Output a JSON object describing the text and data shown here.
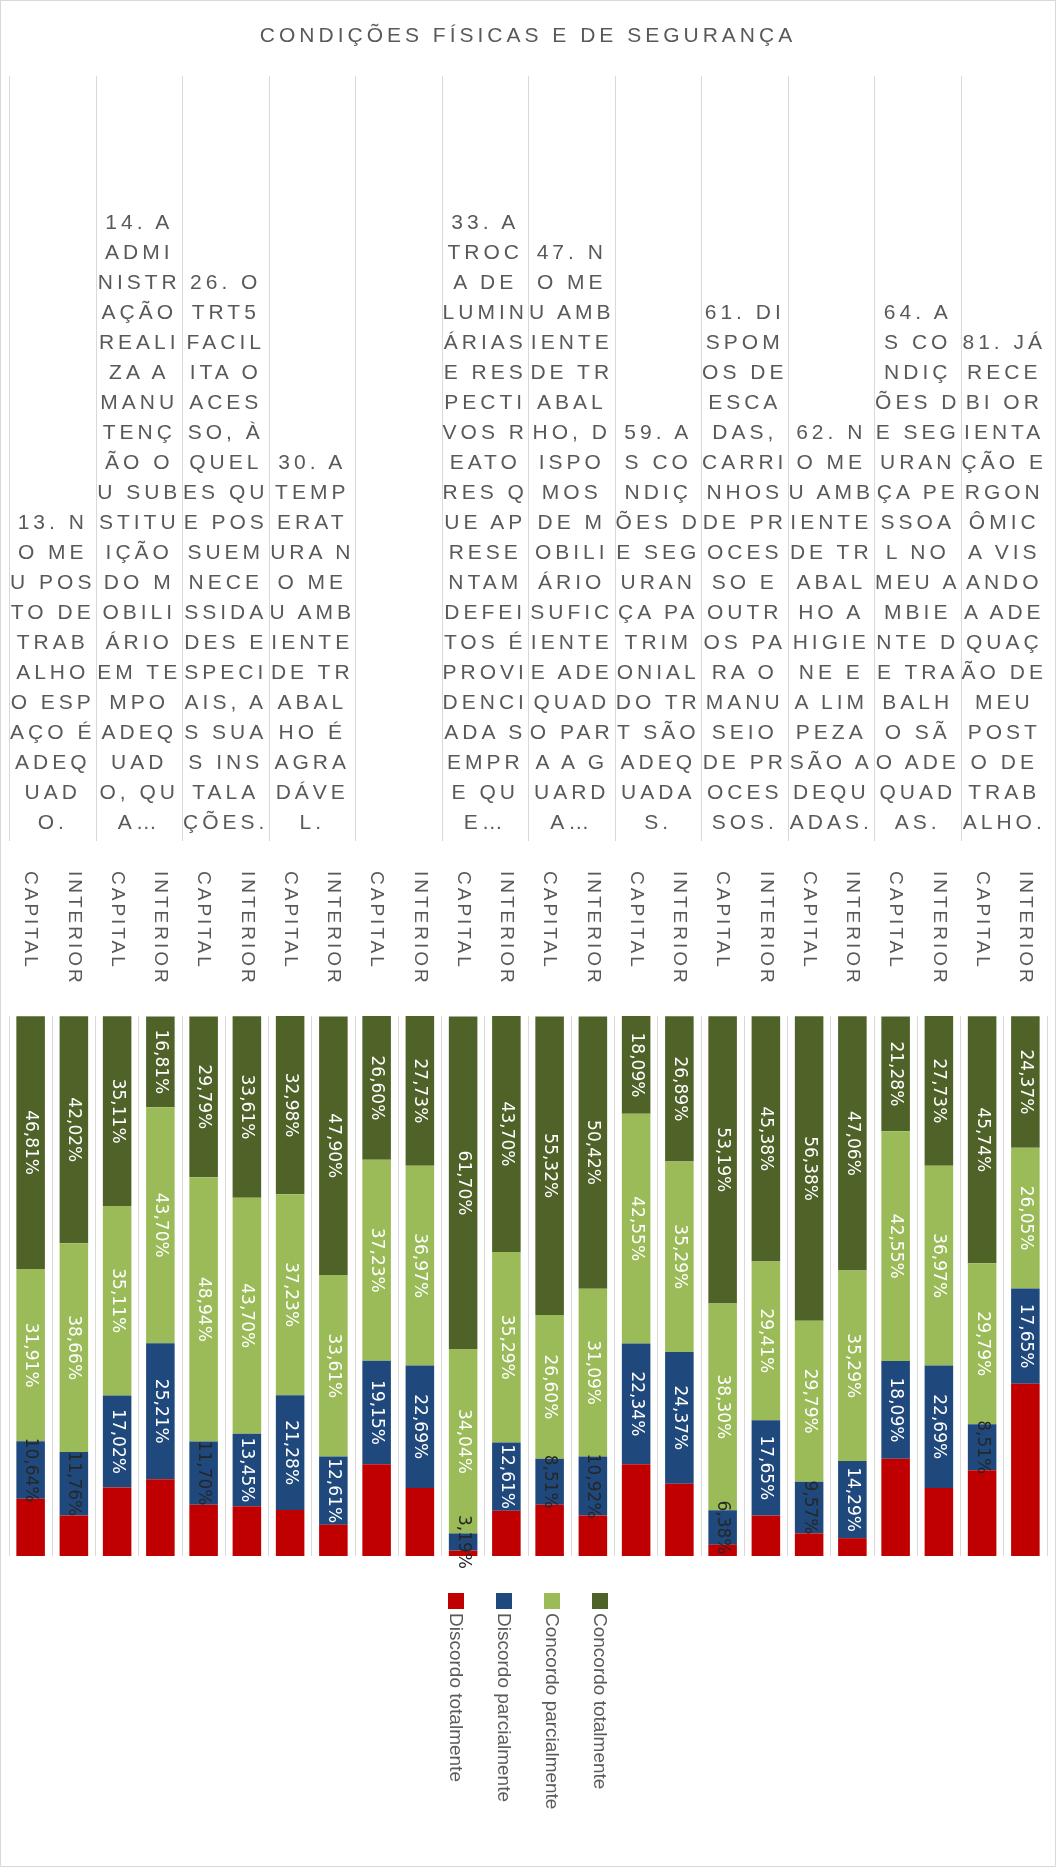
{
  "chart_data": {
    "type": "bar",
    "title": "CONDIÇÕES FÍSICAS E DE SEGURANÇA",
    "categories": [
      "CAPITAL",
      "INTERIOR",
      "CAPITAL",
      "INTERIOR",
      "CAPITAL",
      "INTERIOR",
      "CAPITAL",
      "INTERIOR",
      "CAPITAL",
      "INTERIOR",
      "CAPITAL",
      "INTERIOR",
      "CAPITAL",
      "INTERIOR",
      "CAPITAL",
      "INTERIOR",
      "CAPITAL",
      "INTERIOR",
      "CAPITAL",
      "INTERIOR",
      "CAPITAL",
      "INTERIOR",
      "CAPITAL",
      "INTERIOR"
    ],
    "annotations": [
      "13. NO MEU POSTO DE TRABALHO O ESPAÇO É ADEQUADO.",
      "14. A ADMINISTRAÇÃO REALIZA A MANUTENÇÃO OU SUBSTITUIÇÃO DO MOBILIÁRIO EM TEMPO ADEQUADO, QUA…",
      "26. O TRT5 FACILITA O ACESSO, ÀQUELES QUE POSSUEM NECESSIDADES ESPECIAIS, AS SUAS INSTALAÇÕES.",
      "30. A TEMPERATURA NO MEU AMBIENTE DE TRABALHO É AGRADÁVEL.",
      null,
      "33. A TROCA DE LUMINÁRIAS E RESPECTIVOS REATORES QUE APRESENTAM DEFEITOS É PROVIDENCIADA SEMPRE QUE…",
      "47. NO MEU AMBIENTE DE TRABALHO, DISPOMOS DE MOBILIÁRIO SUFICIENTE E ADEQUADO PARA A GUARDA…",
      "59. AS CONDIÇÕES DE SEGURANÇA PATRIMONIAL DO TRT SÃO ADEQUADAS.",
      "61. DISPOMOS DE ESCADAS, CARRINHOS DE PROCESSO E OUTROS PARA O MANUSEIO DE PROCESSOS.",
      "62. NO MEU AMBIENTE DE TRABALHO A HIGIENE E A LIMPEZA SÃO ADEQUADAS.",
      "64. AS CONDIÇÕES DE SEGURANÇA PESSOAL NO MEU AMBIENTE DE TRABALHO SÃO ADEQUADAS.",
      "81. JÁ RECEBI ORIENTAÇÃO ERGONÔMICA VISANDO A ADEQUAÇÃO DE MEU POSTO DE TRABALHO."
    ],
    "stacked": true,
    "ylim": [
      0,
      100
    ],
    "tick_labels": "x",
    "grid": "x",
    "legend": "bottom",
    "series": [
      {
        "name": "Discordo totalmente",
        "color": "#c00000",
        "values": [
          10.6,
          7.5,
          12.7,
          14.2,
          9.5,
          9.2,
          8.5,
          5.8,
          17.0,
          12.6,
          1.0,
          8.4,
          9.5,
          7.5,
          17.0,
          13.4,
          2.1,
          7.5,
          4.2,
          3.3,
          18.0,
          12.6,
          15.9,
          31.9
        ]
      },
      {
        "name": "Discordo parcialmente",
        "color": "#1f497d",
        "values": [
          10.64,
          11.76,
          17.02,
          25.21,
          11.7,
          13.45,
          21.28,
          12.61,
          19.15,
          22.69,
          3.19,
          12.61,
          8.51,
          10.92,
          22.34,
          24.37,
          6.38,
          17.65,
          9.57,
          14.29,
          18.09,
          22.69,
          8.51,
          17.65
        ],
        "value_labels": [
          "10,64%",
          "11,76%",
          "17,02%",
          "25,21%",
          "11,70%",
          "13,45%",
          "21,28%",
          "12,61%",
          "19,15%",
          "22,69%",
          "3,19%",
          "12,61%",
          "8,51%",
          "10,92%",
          "22,34%",
          "24,37%",
          "6,38%",
          "17,65%",
          "9,57%",
          "14,29%",
          "18,09%",
          "22,69%",
          "8,51%",
          "17,65%"
        ]
      },
      {
        "name": "Concordo parcialmente",
        "color": "#9bbb59",
        "values": [
          31.91,
          38.66,
          35.11,
          43.7,
          48.94,
          43.7,
          37.23,
          33.61,
          37.23,
          36.97,
          34.04,
          35.29,
          26.6,
          31.09,
          42.55,
          35.29,
          38.3,
          29.41,
          29.79,
          35.29,
          42.55,
          36.97,
          29.79,
          26.05
        ],
        "value_labels": [
          "31,91%",
          "38,66%",
          "35,11%",
          "43,70%",
          "48,94%",
          "43,70%",
          "37,23%",
          "33,61%",
          "37,23%",
          "36,97%",
          "34,04%",
          "35,29%",
          "26,60%",
          "31,09%",
          "42,55%",
          "35,29%",
          "38,30%",
          "29,41%",
          "29,79%",
          "35,29%",
          "42,55%",
          "36,97%",
          "29,79%",
          "26,05%"
        ]
      },
      {
        "name": "Concordo totalmente",
        "color": "#4f6228",
        "values": [
          46.81,
          42.02,
          35.11,
          16.81,
          29.79,
          33.61,
          32.98,
          47.9,
          26.6,
          27.73,
          61.7,
          43.7,
          55.32,
          50.42,
          18.09,
          26.89,
          53.19,
          45.38,
          56.38,
          47.06,
          21.28,
          27.73,
          45.74,
          24.37
        ],
        "value_labels": [
          "46,81%",
          "42,02%",
          "35,11%",
          "16,81%",
          "29,79%",
          "33,61%",
          "32,98%",
          "47,90%",
          "26,60%",
          "27,73%",
          "61,70%",
          "43,70%",
          "55,32%",
          "50,42%",
          "18,09%",
          "26,89%",
          "53,19%",
          "45,38%",
          "56,38%",
          "47,06%",
          "21,28%",
          "27,73%",
          "45,74%",
          "24,37%"
        ]
      }
    ]
  }
}
